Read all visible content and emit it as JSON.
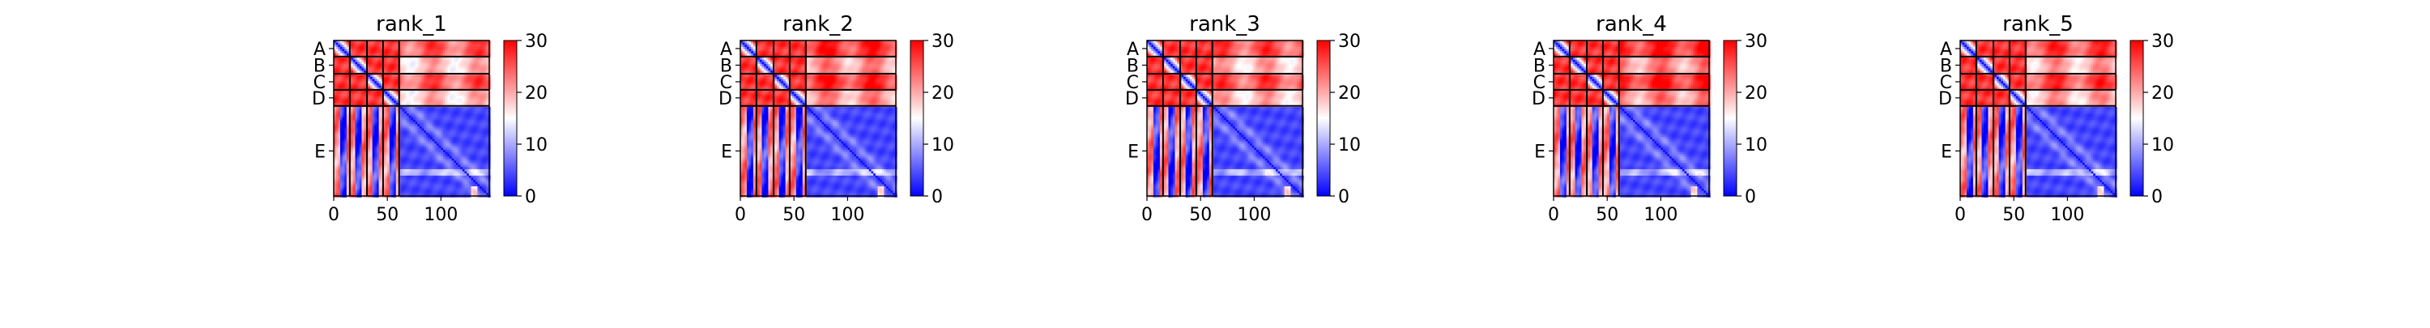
{
  "chart_data": {
    "type": "heatmap",
    "colormap": {
      "low": "#0000ff",
      "mid": "#ffffff",
      "high": "#ff0000"
    },
    "color_range": [
      0,
      30
    ],
    "x_range": [
      0,
      145
    ],
    "x_ticks": [
      0,
      50,
      100
    ],
    "colorbar_ticks": [
      0,
      10,
      20,
      30
    ],
    "chains": [
      {
        "label": "A",
        "start": 0,
        "end": 15
      },
      {
        "label": "B",
        "start": 15,
        "end": 31
      },
      {
        "label": "C",
        "start": 31,
        "end": 46
      },
      {
        "label": "D",
        "start": 46,
        "end": 61
      },
      {
        "label": "E",
        "start": 61,
        "end": 145
      }
    ],
    "panels": [
      {
        "title": "rank_1"
      },
      {
        "title": "rank_2"
      },
      {
        "title": "rank_3"
      },
      {
        "title": "rank_4"
      },
      {
        "title": "rank_5"
      }
    ]
  }
}
